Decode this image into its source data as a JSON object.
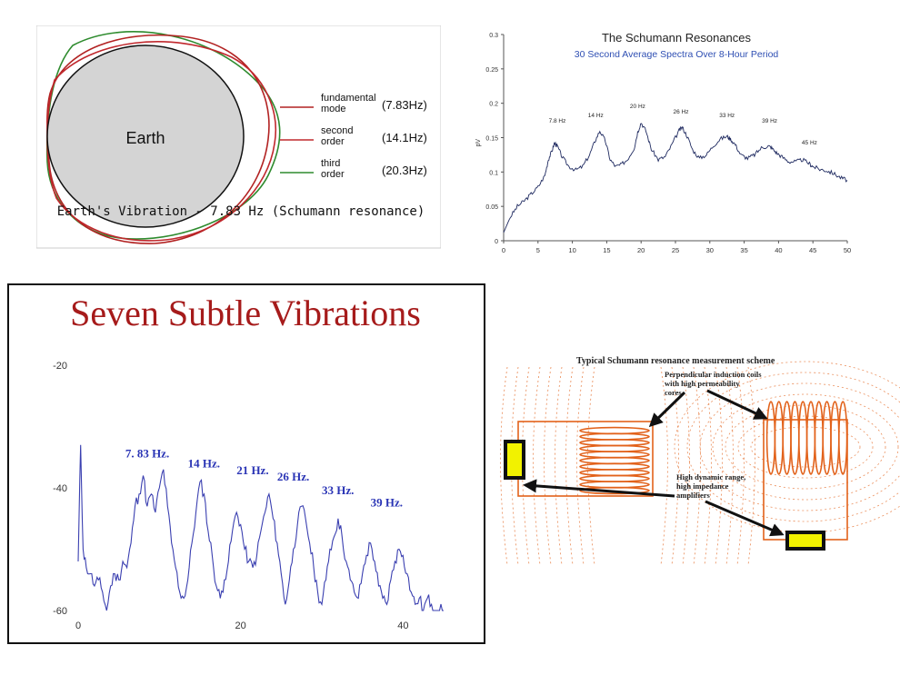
{
  "earth_panel": {
    "earth_label": "Earth",
    "caption": "Earth's Vibration - 7.83 Hz (Schumann resonance)",
    "legend": [
      {
        "label_lines": [
          "fundamental",
          "mode"
        ],
        "freq": "(7.83Hz)",
        "color": "#b22222"
      },
      {
        "label_lines": [
          "second",
          "order"
        ],
        "freq": "(14.1Hz)",
        "color": "#c0282d"
      },
      {
        "label_lines": [
          "third",
          "order"
        ],
        "freq": "(20.3Hz)",
        "color": "#2e8b2e"
      }
    ]
  },
  "chart_data": [
    {
      "type": "line",
      "title": "The Schumann Resonances",
      "subtitle": "30 Second Average Spectra Over 8-Hour Period",
      "xlabel": "",
      "ylabel": "pV",
      "xlim": [
        0,
        50
      ],
      "ylim": [
        0,
        0.3
      ],
      "xticks": [
        "0",
        "5",
        "10",
        "15",
        "20",
        "25",
        "30",
        "35",
        "40",
        "45",
        "50"
      ],
      "yticks": [
        "0",
        "0.05",
        "0.1",
        "0.15",
        "0.2",
        "0.25",
        "0.3"
      ],
      "color": "#1f2a60",
      "x": [
        0,
        1,
        2,
        3,
        4,
        5,
        6,
        6.5,
        7,
        7.4,
        7.8,
        8.5,
        9.5,
        10.5,
        11.5,
        12.5,
        13.3,
        14,
        14.8,
        15.5,
        16.3,
        17,
        18,
        19,
        19.5,
        20,
        20.7,
        21.5,
        22.5,
        23.5,
        24.5,
        25.5,
        26,
        26.7,
        27.5,
        28.5,
        29.5,
        30.5,
        31.5,
        32.5,
        33,
        33.7,
        34.5,
        35.5,
        36.5,
        37.5,
        38.5,
        39,
        39.7,
        40.5,
        41.5,
        42.5,
        43.5,
        44.5,
        45,
        46,
        47,
        48,
        49,
        50
      ],
      "y": [
        0.012,
        0.035,
        0.05,
        0.058,
        0.068,
        0.078,
        0.095,
        0.118,
        0.13,
        0.142,
        0.138,
        0.122,
        0.108,
        0.103,
        0.108,
        0.125,
        0.145,
        0.16,
        0.145,
        0.118,
        0.108,
        0.11,
        0.118,
        0.135,
        0.158,
        0.172,
        0.16,
        0.133,
        0.118,
        0.122,
        0.14,
        0.16,
        0.165,
        0.152,
        0.132,
        0.12,
        0.125,
        0.138,
        0.148,
        0.152,
        0.148,
        0.14,
        0.125,
        0.12,
        0.125,
        0.135,
        0.138,
        0.135,
        0.128,
        0.122,
        0.115,
        0.115,
        0.118,
        0.112,
        0.108,
        0.104,
        0.102,
        0.098,
        0.092,
        0.088
      ],
      "annotations": [
        {
          "text": "7.8 Hz",
          "x": 7.8,
          "y": 0.172
        },
        {
          "text": "14 Hz",
          "x": 13.4,
          "y": 0.18
        },
        {
          "text": "20 Hz",
          "x": 19.5,
          "y": 0.193
        },
        {
          "text": "26 Hz",
          "x": 25.8,
          "y": 0.185
        },
        {
          "text": "33 Hz",
          "x": 32.5,
          "y": 0.18
        },
        {
          "text": "39 Hz",
          "x": 38.7,
          "y": 0.172
        },
        {
          "text": "45 Hz",
          "x": 44.5,
          "y": 0.14
        }
      ]
    },
    {
      "type": "line",
      "title": "Seven Subtle Vibrations",
      "xlabel": "",
      "ylabel": "",
      "xlim": [
        0,
        45
      ],
      "ylim": [
        -60,
        -20
      ],
      "xticks": [
        "0",
        "20",
        "40"
      ],
      "xtick_values": [
        0,
        20,
        40
      ],
      "yticks": [
        "-20",
        "-40",
        "-60"
      ],
      "ytick_values": [
        -20,
        -40,
        -60
      ],
      "color": "#3a3fb0",
      "x": [
        0,
        0.3,
        0.6,
        1,
        1.5,
        2,
        2.5,
        3,
        3.5,
        4,
        4.5,
        5,
        5.5,
        6,
        6.5,
        7,
        7.5,
        8,
        8.5,
        9,
        9.5,
        10,
        10.5,
        11,
        11.5,
        12,
        12.5,
        13,
        13.5,
        14,
        14.5,
        15,
        15.5,
        16,
        16.5,
        17,
        17.5,
        18,
        18.5,
        19,
        19.5,
        20,
        20.5,
        21,
        21.5,
        22,
        22.5,
        23,
        23.5,
        24,
        24.5,
        25,
        25.5,
        26,
        26.5,
        27,
        27.5,
        28,
        28.5,
        29,
        29.5,
        30,
        30.5,
        31,
        31.5,
        32,
        32.5,
        33,
        33.5,
        34,
        34.5,
        35,
        35.5,
        36,
        36.5,
        37,
        37.5,
        38,
        38.5,
        39,
        39.5,
        40,
        40.5,
        41,
        41.5,
        42,
        42.5,
        43,
        43.5,
        44,
        44.5,
        45
      ],
      "y": [
        -52,
        -33,
        -50,
        -53,
        -54,
        -56,
        -55,
        -57,
        -60,
        -56,
        -54,
        -55,
        -52,
        -53,
        -49,
        -43,
        -41,
        -38,
        -43,
        -41,
        -44,
        -40,
        -37,
        -43,
        -49,
        -53,
        -57,
        -58,
        -55,
        -49,
        -44,
        -39,
        -41,
        -47,
        -51,
        -56,
        -58,
        -55,
        -52,
        -47,
        -44,
        -46,
        -50,
        -52,
        -53,
        -51,
        -47,
        -44,
        -41,
        -45,
        -49,
        -54,
        -59,
        -55,
        -50,
        -46,
        -43,
        -45,
        -49,
        -53,
        -57,
        -59,
        -55,
        -50,
        -48,
        -45,
        -48,
        -52,
        -55,
        -57,
        -58,
        -54,
        -51,
        -49,
        -52,
        -56,
        -58,
        -59,
        -55,
        -52,
        -50,
        -51,
        -54,
        -57,
        -59,
        -58,
        -60,
        -58,
        -59,
        -60,
        -60,
        -60
      ],
      "annotations": [
        {
          "text": "7. 83 Hz.",
          "x": 5.8,
          "y": -35
        },
        {
          "text": "14 Hz.",
          "x": 13.5,
          "y": -36.7
        },
        {
          "text": "21 Hz.",
          "x": 19.5,
          "y": -37.8
        },
        {
          "text": "26 Hz.",
          "x": 24.5,
          "y": -38.8
        },
        {
          "text": "33 Hz.",
          "x": 30,
          "y": -41
        },
        {
          "text": "39 Hz.",
          "x": 36,
          "y": -43
        }
      ]
    }
  ],
  "scheme_panel": {
    "title": "Typical Schumann resonance measurement scheme",
    "label_coils": [
      "Perpendicular induction coils",
      "with high permeability",
      "cores"
    ],
    "label_amps": [
      "High dynamic range,",
      "high impedance",
      "amplifiers"
    ],
    "coil_color": "#e2621b",
    "amp_color": "#f2f200"
  }
}
